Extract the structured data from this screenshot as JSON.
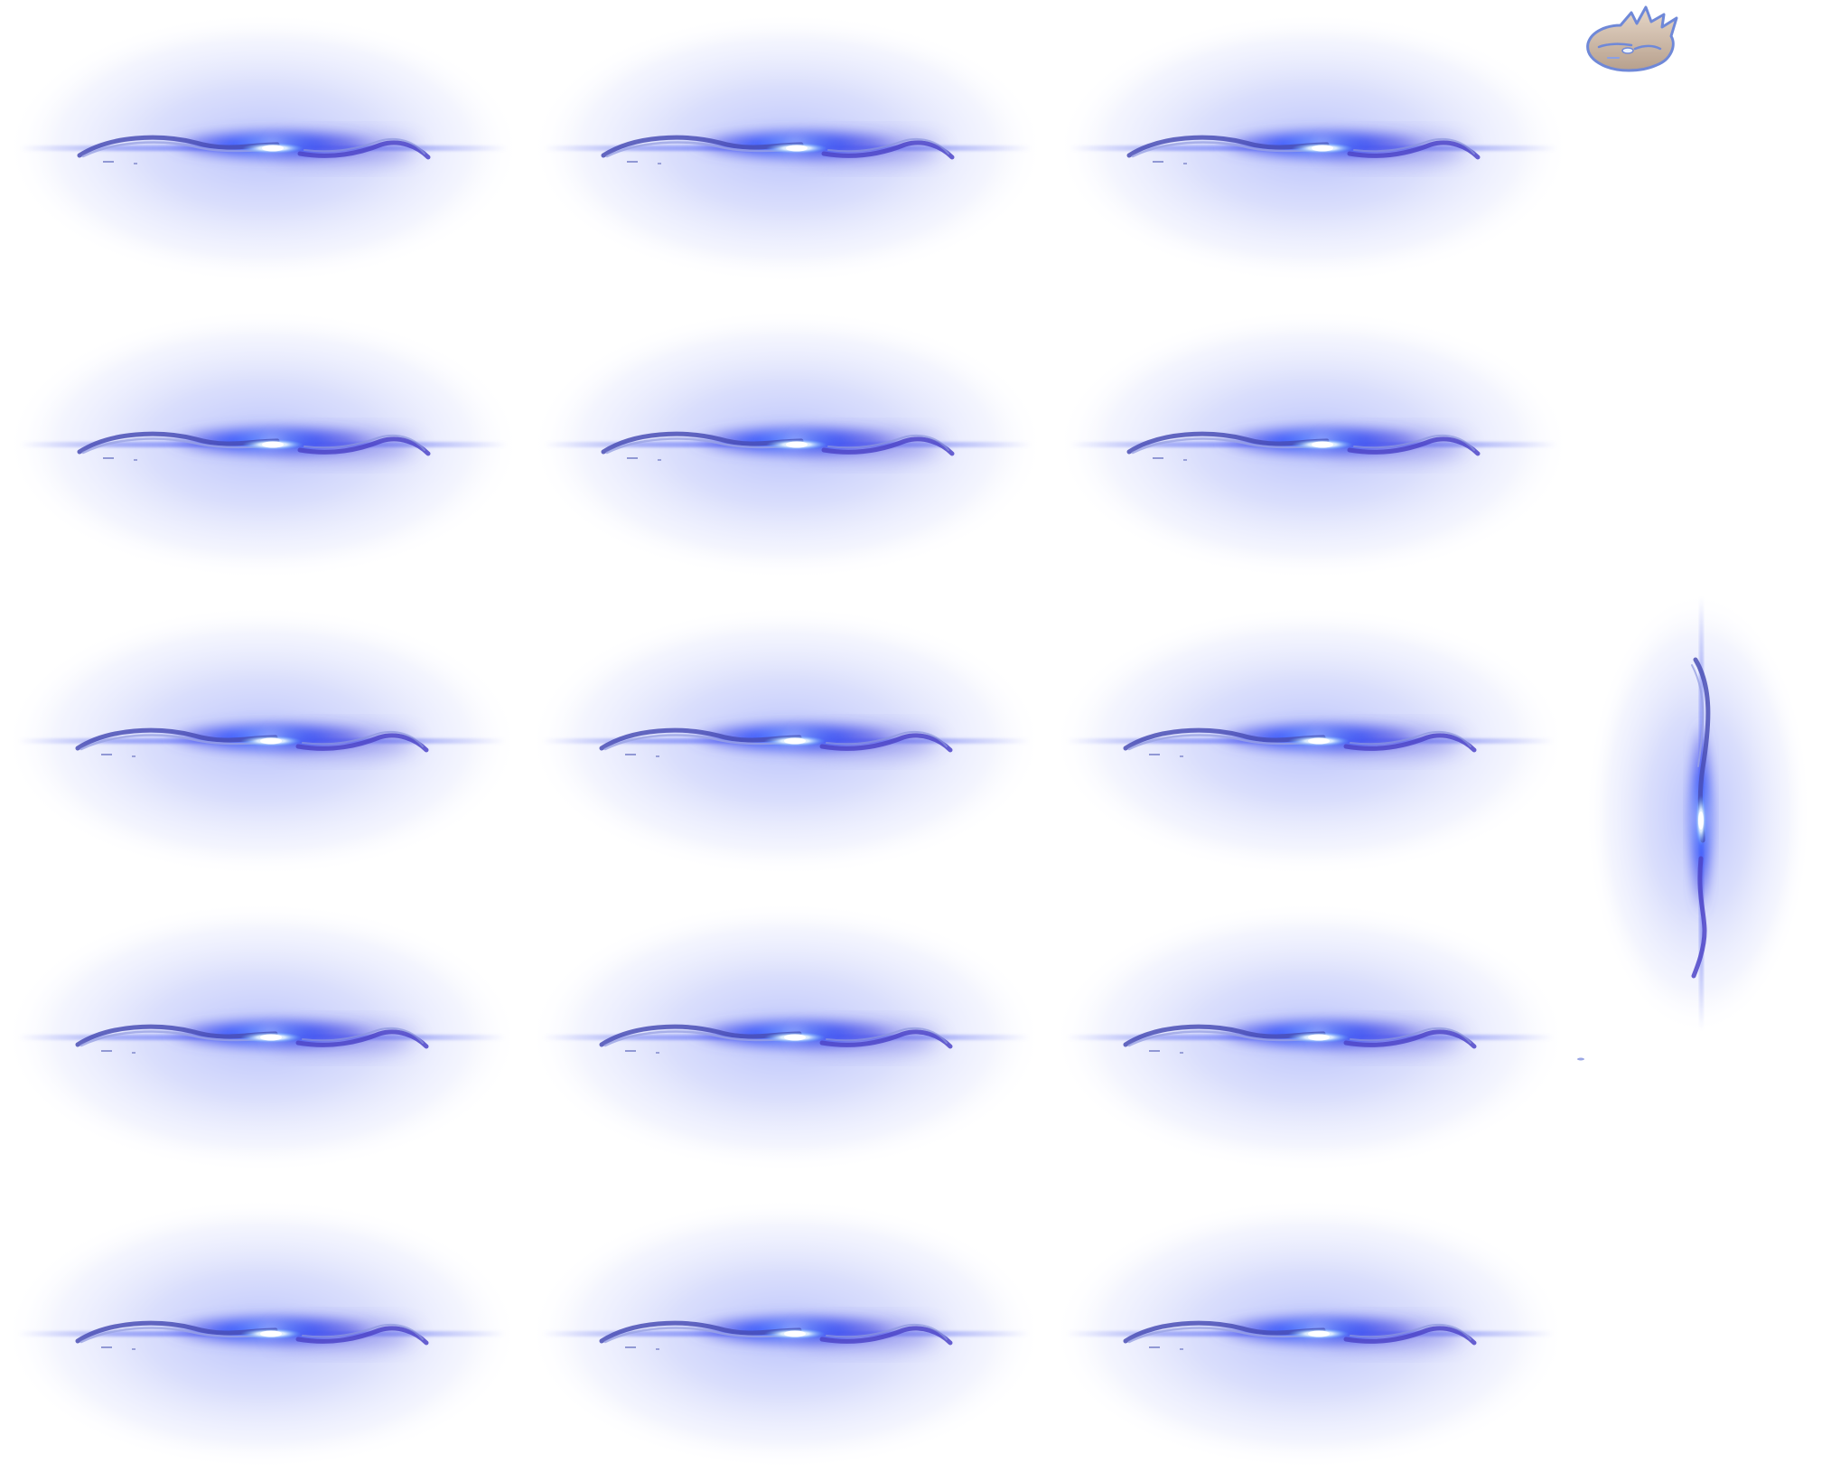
{
  "sprite_sheet": {
    "frame_kind": "horizontal-blue-energy-slash",
    "grid": {
      "rows": 5,
      "columns": 3
    },
    "extra_frames": [
      "vertical-blue-energy-slash",
      "spiky-emblem"
    ],
    "colors": {
      "halo": "#c9cffb",
      "glow": "#2f54ff",
      "core": "#ffffff",
      "blade": "#4a4fb5",
      "blade_light": "#8c95dd",
      "emblem_fill": "#cbb9a8",
      "emblem_edge": "#6f88d8"
    }
  }
}
